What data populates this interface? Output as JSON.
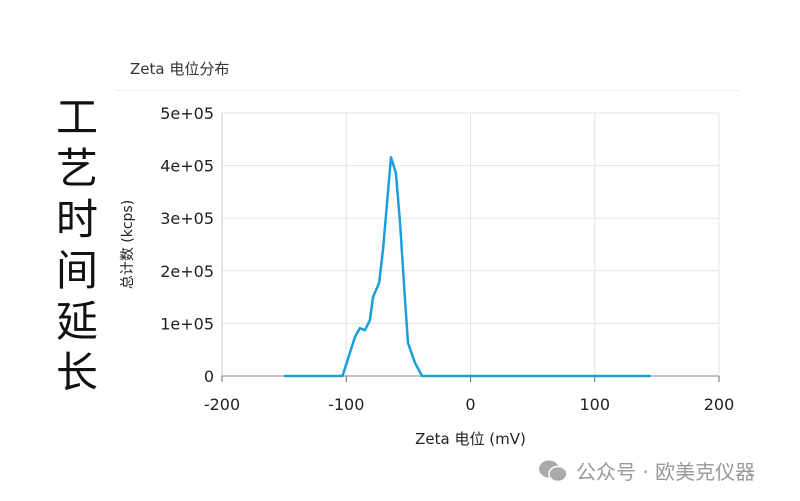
{
  "side_label": "工艺时间延长",
  "panel_title": "Zeta 电位分布",
  "watermark": "公众号 · 欧美克仪器",
  "chart_data": {
    "type": "line",
    "xlabel": "Zeta 电位 (mV)",
    "ylabel": "总计数 (kcps)",
    "xlim": [
      -200,
      200
    ],
    "ylim": [
      0,
      500000
    ],
    "xticks": [
      "-200",
      "-100",
      "0",
      "100",
      "200"
    ],
    "yticks": [
      "0",
      "1e+05",
      "2e+05",
      "3e+05",
      "4e+05",
      "5e+05"
    ],
    "grid": true,
    "color": "#1a9fdc",
    "x": [
      -150,
      -103,
      -93,
      -89,
      -85,
      -81,
      -78.5,
      -73.6,
      -70.4,
      -67,
      -64,
      -60,
      -56.7,
      -52.7,
      -50.3,
      -44.7,
      -39,
      145
    ],
    "y": [
      0,
      0,
      74000,
      91000,
      87000,
      106000,
      150000,
      177000,
      240000,
      335000,
      416000,
      386000,
      290000,
      145000,
      63000,
      25000,
      0,
      0
    ]
  }
}
